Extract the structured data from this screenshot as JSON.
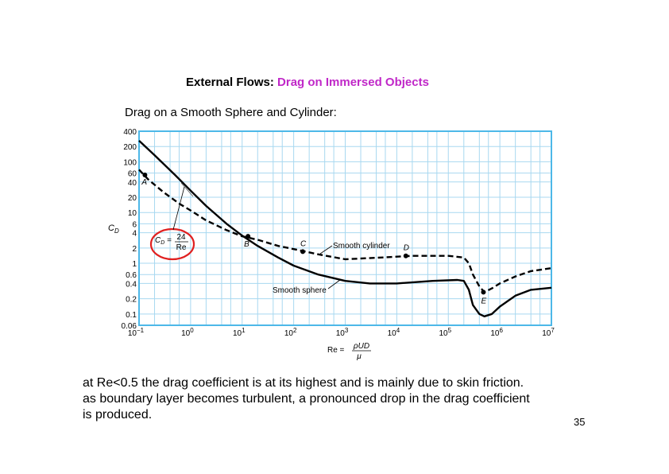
{
  "slide": {
    "title_prefix": "External Flows:",
    "title_highlight": "Drag on Immersed Objects",
    "subtitle": "Drag on a Smooth Sphere and Cylinder:",
    "body_lines": [
      "at Re<0.5 the drag coefficient is at its highest and is mainly due to skin friction.",
      "as boundary layer becomes turbulent, a pronounced drop in the drag coefficient",
      "is produced."
    ],
    "page_number": "35"
  },
  "chart_data": {
    "type": "line",
    "xscale": "log",
    "yscale": "log",
    "xlim": [
      0.1,
      10000000
    ],
    "ylim": [
      0.06,
      400
    ],
    "grid": true,
    "grid_color": "#a8d8f0",
    "ylabel": "C_D",
    "xlabel": {
      "lhs": "Re =",
      "num": "ρUD",
      "den": "μ"
    },
    "x_ticks": [
      {
        "base": "10",
        "exp": "−1",
        "value": 0.1
      },
      {
        "base": "10",
        "exp": "0",
        "value": 1
      },
      {
        "base": "10",
        "exp": "1",
        "value": 10
      },
      {
        "base": "10",
        "exp": "2",
        "value": 100
      },
      {
        "base": "10",
        "exp": "3",
        "value": 1000
      },
      {
        "base": "10",
        "exp": "4",
        "value": 10000
      },
      {
        "base": "10",
        "exp": "5",
        "value": 100000
      },
      {
        "base": "10",
        "exp": "6",
        "value": 1000000
      },
      {
        "base": "10",
        "exp": "7",
        "value": 10000000
      }
    ],
    "y_ticks": [
      {
        "label": "400",
        "value": 400
      },
      {
        "label": "200",
        "value": 200
      },
      {
        "label": "100",
        "value": 100
      },
      {
        "label": "60",
        "value": 60
      },
      {
        "label": "40",
        "value": 40
      },
      {
        "label": "20",
        "value": 20
      },
      {
        "label": "10",
        "value": 10
      },
      {
        "label": "6",
        "value": 6
      },
      {
        "label": "4",
        "value": 4
      },
      {
        "label": "2",
        "value": 2
      },
      {
        "label": "1",
        "value": 1
      },
      {
        "label": "0.6",
        "value": 0.6
      },
      {
        "label": "0.4",
        "value": 0.4
      },
      {
        "label": "0.2",
        "value": 0.2
      },
      {
        "label": "0.1",
        "value": 0.1
      },
      {
        "label": "0.06",
        "value": 0.06
      }
    ],
    "series": [
      {
        "name": "Smooth sphere",
        "style": "solid",
        "color": "#000000",
        "points": [
          [
            0.1,
            260
          ],
          [
            0.2,
            135
          ],
          [
            0.5,
            55
          ],
          [
            1,
            27
          ],
          [
            2,
            13.5
          ],
          [
            5,
            6
          ],
          [
            10,
            3.5
          ],
          [
            20,
            2.2
          ],
          [
            50,
            1.3
          ],
          [
            100,
            0.9
          ],
          [
            300,
            0.6
          ],
          [
            1000,
            0.45
          ],
          [
            3000,
            0.4
          ],
          [
            10000,
            0.4
          ],
          [
            50000,
            0.45
          ],
          [
            150000,
            0.47
          ],
          [
            200000,
            0.45
          ],
          [
            250000,
            0.3
          ],
          [
            300000,
            0.15
          ],
          [
            400000,
            0.1
          ],
          [
            500000,
            0.09
          ],
          [
            700000,
            0.1
          ],
          [
            1000000,
            0.14
          ],
          [
            2000000,
            0.23
          ],
          [
            4000000,
            0.3
          ],
          [
            10000000,
            0.33
          ]
        ]
      },
      {
        "name": "Smooth cylinder",
        "style": "dashed",
        "color": "#000000",
        "points": [
          [
            0.1,
            70
          ],
          [
            0.15,
            45
          ],
          [
            0.3,
            25
          ],
          [
            0.6,
            15
          ],
          [
            1,
            11
          ],
          [
            2,
            7
          ],
          [
            5,
            4.5
          ],
          [
            10,
            3.4
          ],
          [
            20,
            2.9
          ],
          [
            50,
            2.2
          ],
          [
            100,
            1.9
          ],
          [
            300,
            1.5
          ],
          [
            1000,
            1.2
          ],
          [
            5000,
            1.3
          ],
          [
            20000,
            1.4
          ],
          [
            100000,
            1.4
          ],
          [
            200000,
            1.3
          ],
          [
            250000,
            1
          ],
          [
            300000,
            0.6
          ],
          [
            400000,
            0.35
          ],
          [
            500000,
            0.27
          ],
          [
            700000,
            0.32
          ],
          [
            1000000,
            0.4
          ],
          [
            2000000,
            0.55
          ],
          [
            4000000,
            0.7
          ],
          [
            10000000,
            0.8
          ]
        ]
      }
    ],
    "point_labels": [
      {
        "label": "A",
        "x": 0.13,
        "y": 55,
        "marker": true
      },
      {
        "label": "B",
        "x": 13,
        "y": 3.4,
        "marker": true
      },
      {
        "label": "C",
        "x": 150,
        "y": 1.7,
        "marker": true
      },
      {
        "label": "D",
        "x": 15000,
        "y": 1.4,
        "marker": true
      },
      {
        "label": "E",
        "x": 480000,
        "y": 0.27,
        "marker": true
      }
    ],
    "annotations": [
      {
        "text": "Smooth cylinder"
      },
      {
        "text": "Smooth sphere"
      },
      {
        "lhs": "C_D =",
        "num": "24",
        "den": "Re",
        "highlight_color": "#e02020"
      }
    ]
  }
}
